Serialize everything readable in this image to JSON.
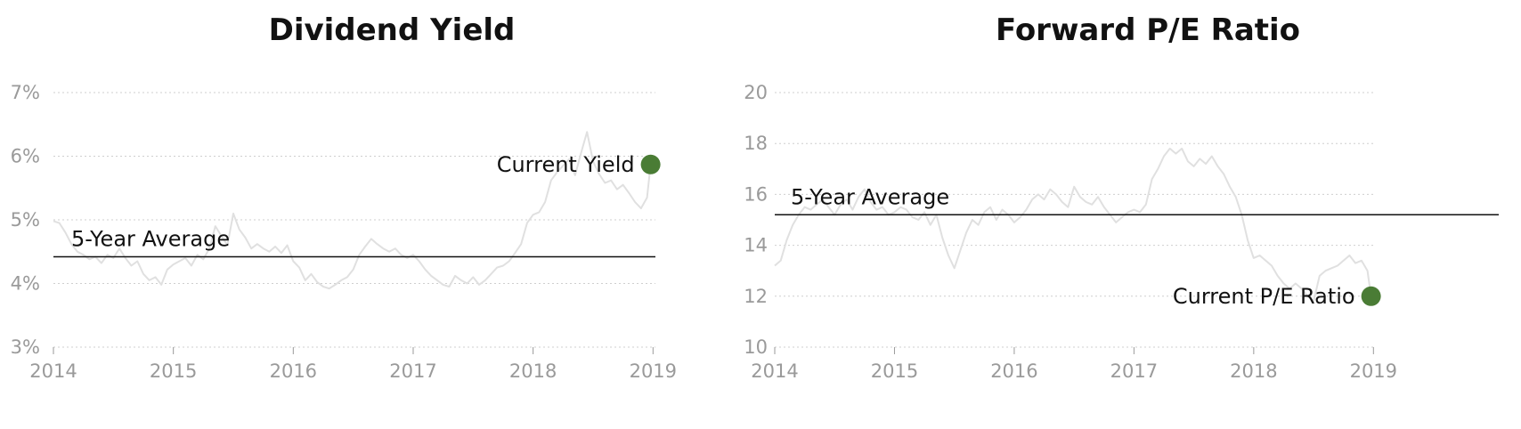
{
  "chart_data": [
    {
      "type": "line",
      "title": "Dividend Yield",
      "xlabel": "",
      "ylabel": "",
      "x_ticks": [
        "2014",
        "2015",
        "2016",
        "2017",
        "2018",
        "2019"
      ],
      "xlim": [
        2014,
        2019.02
      ],
      "y_ticks": [
        "3%",
        "4%",
        "5%",
        "6%",
        "7%"
      ],
      "ylim": [
        3,
        7
      ],
      "grid": true,
      "reference_line": {
        "label": "5-Year Average",
        "value": 4.42
      },
      "current_point": {
        "label": "Current Yield",
        "x": 2018.98,
        "y": 5.87,
        "color": "#4a7c35"
      },
      "line_color": "#e0e0e0",
      "series": [
        {
          "x": [
            2014.0,
            2014.05,
            2014.1,
            2014.15,
            2014.2,
            2014.25,
            2014.3,
            2014.35,
            2014.4,
            2014.45,
            2014.5,
            2014.55,
            2014.6,
            2014.65,
            2014.7,
            2014.75,
            2014.8,
            2014.85,
            2014.9,
            2014.95,
            2015.0,
            2015.05,
            2015.1,
            2015.15,
            2015.2,
            2015.25,
            2015.3,
            2015.35,
            2015.4,
            2015.45,
            2015.5,
            2015.55,
            2015.6,
            2015.65,
            2015.7,
            2015.75,
            2015.8,
            2015.85,
            2015.9,
            2015.95,
            2016.0,
            2016.05,
            2016.1,
            2016.15,
            2016.2,
            2016.25,
            2016.3,
            2016.35,
            2016.4,
            2016.45,
            2016.5,
            2016.55,
            2016.6,
            2016.65,
            2016.7,
            2016.75,
            2016.8,
            2016.85,
            2016.9,
            2016.95,
            2017.0,
            2017.05,
            2017.1,
            2017.15,
            2017.2,
            2017.25,
            2017.3,
            2017.35,
            2017.4,
            2017.45,
            2017.5,
            2017.55,
            2017.6,
            2017.65,
            2017.7,
            2017.75,
            2017.8,
            2017.85,
            2017.9,
            2017.95,
            2018.0,
            2018.05,
            2018.1,
            2018.15,
            2018.2,
            2018.25,
            2018.3,
            2018.35,
            2018.4,
            2018.45,
            2018.5,
            2018.55,
            2018.6,
            2018.65,
            2018.7,
            2018.75,
            2018.8,
            2018.85,
            2018.9,
            2018.95,
            2018.98
          ],
          "values": [
            4.98,
            4.95,
            4.8,
            4.62,
            4.5,
            4.45,
            4.38,
            4.42,
            4.32,
            4.45,
            4.4,
            4.55,
            4.4,
            4.28,
            4.35,
            4.15,
            4.05,
            4.1,
            3.98,
            4.22,
            4.3,
            4.35,
            4.4,
            4.28,
            4.45,
            4.38,
            4.55,
            4.9,
            4.75,
            4.6,
            5.1,
            4.85,
            4.72,
            4.55,
            4.62,
            4.55,
            4.5,
            4.58,
            4.48,
            4.6,
            4.35,
            4.25,
            4.05,
            4.15,
            4.02,
            3.95,
            3.92,
            3.98,
            4.05,
            4.1,
            4.22,
            4.45,
            4.58,
            4.7,
            4.62,
            4.55,
            4.5,
            4.55,
            4.45,
            4.4,
            4.45,
            4.35,
            4.22,
            4.12,
            4.05,
            3.98,
            3.95,
            4.12,
            4.05,
            4.0,
            4.1,
            3.98,
            4.05,
            4.15,
            4.25,
            4.28,
            4.35,
            4.48,
            4.62,
            4.95,
            5.08,
            5.12,
            5.28,
            5.62,
            5.75,
            5.85,
            5.95,
            5.7,
            6.05,
            6.38,
            5.92,
            5.72,
            5.58,
            5.62,
            5.48,
            5.55,
            5.42,
            5.28,
            5.18,
            5.35,
            5.87
          ]
        }
      ]
    },
    {
      "type": "line",
      "title": "Forward P/E Ratio",
      "xlabel": "",
      "ylabel": "",
      "x_ticks": [
        "2014",
        "2015",
        "2016",
        "2017",
        "2018",
        "2019"
      ],
      "xlim": [
        2014,
        2019.02
      ],
      "y_ticks": [
        "10",
        "12",
        "14",
        "16",
        "18",
        "20"
      ],
      "ylim": [
        10,
        20
      ],
      "grid": true,
      "reference_line": {
        "label": "5-Year Average",
        "value": 15.2
      },
      "current_point": {
        "label": "Current P/E Ratio",
        "x": 2018.98,
        "y": 12.0,
        "color": "#4a7c35"
      },
      "line_color": "#e0e0e0",
      "series": [
        {
          "x": [
            2014.0,
            2014.05,
            2014.1,
            2014.15,
            2014.2,
            2014.25,
            2014.3,
            2014.35,
            2014.4,
            2014.45,
            2014.5,
            2014.55,
            2014.6,
            2014.65,
            2014.7,
            2014.75,
            2014.8,
            2014.85,
            2014.9,
            2014.95,
            2015.0,
            2015.05,
            2015.1,
            2015.15,
            2015.2,
            2015.25,
            2015.3,
            2015.35,
            2015.4,
            2015.45,
            2015.5,
            2015.55,
            2015.6,
            2015.65,
            2015.7,
            2015.75,
            2015.8,
            2015.85,
            2015.9,
            2015.95,
            2016.0,
            2016.05,
            2016.1,
            2016.15,
            2016.2,
            2016.25,
            2016.3,
            2016.35,
            2016.4,
            2016.45,
            2016.5,
            2016.55,
            2016.6,
            2016.65,
            2016.7,
            2016.75,
            2016.8,
            2016.85,
            2016.9,
            2016.95,
            2017.0,
            2017.05,
            2017.1,
            2017.15,
            2017.2,
            2017.25,
            2017.3,
            2017.35,
            2017.4,
            2017.45,
            2017.5,
            2017.55,
            2017.6,
            2017.65,
            2017.7,
            2017.75,
            2017.8,
            2017.85,
            2017.9,
            2017.95,
            2018.0,
            2018.05,
            2018.1,
            2018.15,
            2018.2,
            2018.25,
            2018.3,
            2018.35,
            2018.4,
            2018.45,
            2018.5,
            2018.55,
            2018.6,
            2018.65,
            2018.7,
            2018.75,
            2018.8,
            2018.85,
            2018.9,
            2018.95,
            2018.98
          ],
          "values": [
            13.2,
            13.4,
            14.2,
            14.8,
            15.2,
            15.5,
            15.4,
            15.6,
            15.8,
            15.5,
            15.2,
            15.6,
            15.8,
            15.4,
            15.9,
            16.2,
            15.7,
            15.4,
            15.5,
            15.2,
            15.3,
            15.5,
            15.4,
            15.1,
            15.0,
            15.3,
            14.8,
            15.2,
            14.3,
            13.6,
            13.1,
            13.8,
            14.5,
            15.0,
            14.8,
            15.3,
            15.5,
            15.0,
            15.4,
            15.2,
            14.9,
            15.1,
            15.4,
            15.8,
            16.0,
            15.8,
            16.2,
            16.0,
            15.7,
            15.5,
            16.3,
            15.9,
            15.7,
            15.6,
            15.9,
            15.5,
            15.2,
            14.9,
            15.1,
            15.3,
            15.4,
            15.3,
            15.6,
            16.6,
            17.0,
            17.5,
            17.8,
            17.6,
            17.8,
            17.3,
            17.1,
            17.4,
            17.2,
            17.5,
            17.1,
            16.8,
            16.3,
            15.9,
            15.2,
            14.2,
            13.5,
            13.6,
            13.4,
            13.2,
            12.8,
            12.5,
            12.3,
            12.5,
            12.3,
            12.0,
            11.8,
            12.8,
            13.0,
            13.1,
            13.2,
            13.4,
            13.6,
            13.3,
            13.4,
            13.0,
            12.0
          ]
        }
      ]
    }
  ]
}
